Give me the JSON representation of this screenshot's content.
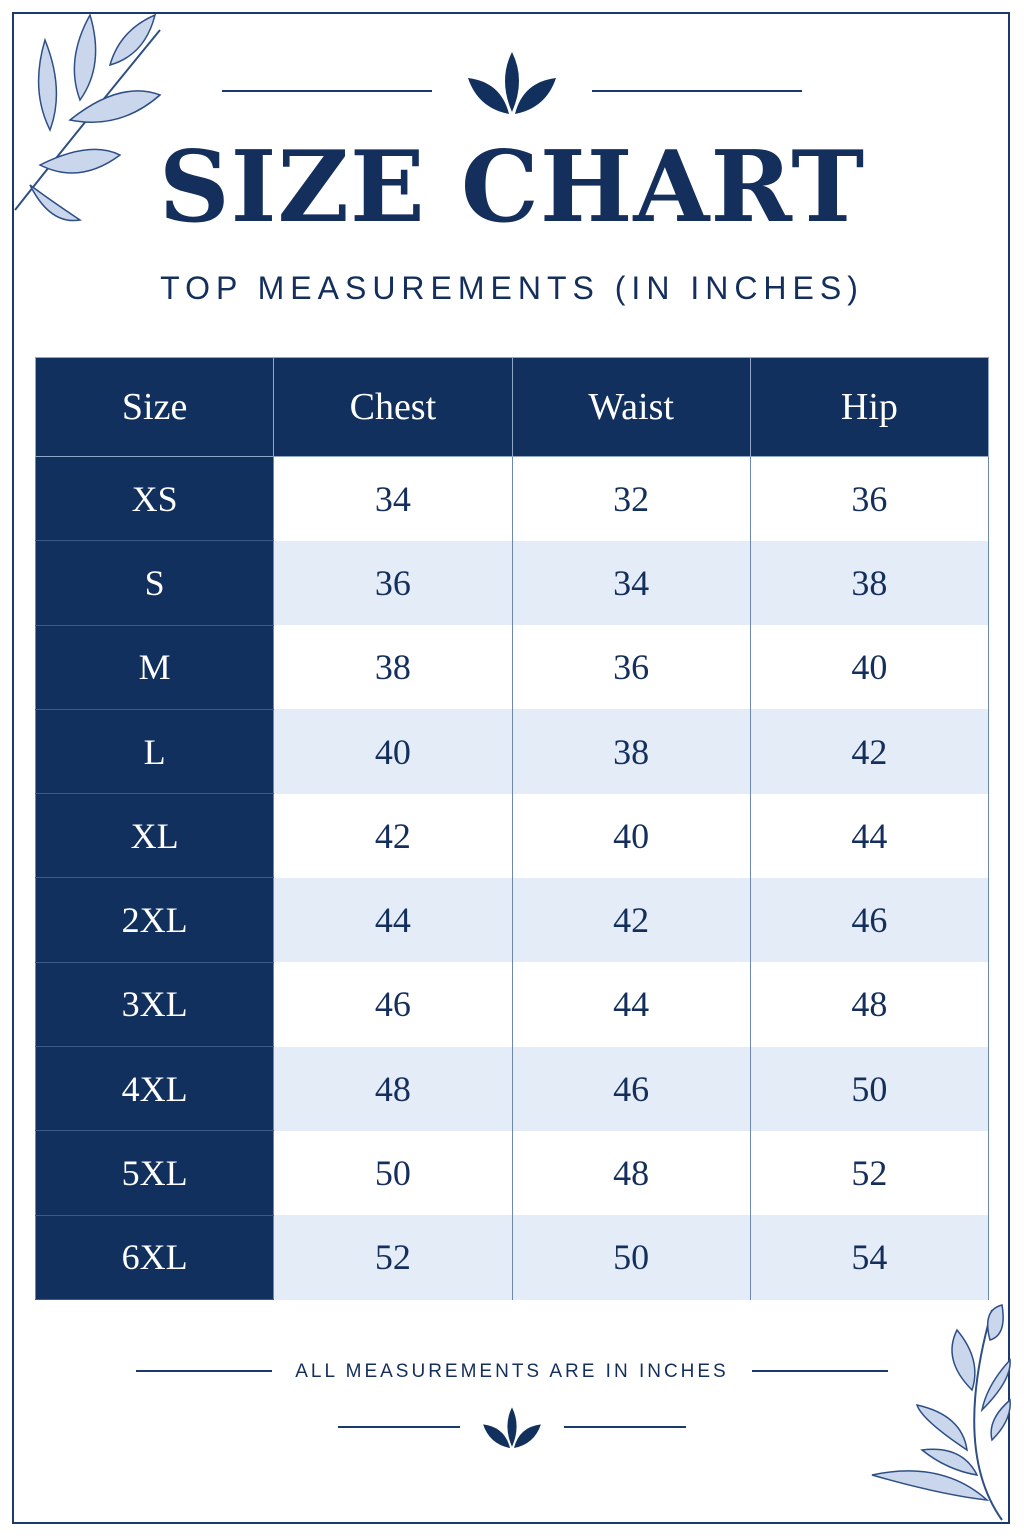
{
  "title": "SIZE CHART",
  "subtitle": "TOP MEASUREMENTS (IN INCHES)",
  "table": {
    "headers": [
      "Size",
      "Chest",
      "Waist",
      "Hip"
    ],
    "rows": [
      [
        "XS",
        "34",
        "32",
        "36"
      ],
      [
        "S",
        "36",
        "34",
        "38"
      ],
      [
        "M",
        "38",
        "36",
        "40"
      ],
      [
        "L",
        "40",
        "38",
        "42"
      ],
      [
        "XL",
        "42",
        "40",
        "44"
      ],
      [
        "2XL",
        "44",
        "42",
        "46"
      ],
      [
        "3XL",
        "46",
        "44",
        "48"
      ],
      [
        "4XL",
        "48",
        "46",
        "50"
      ],
      [
        "5XL",
        "50",
        "48",
        "52"
      ],
      [
        "6XL",
        "52",
        "50",
        "54"
      ]
    ]
  },
  "footnote": "ALL MEASUREMENTS ARE IN INCHES",
  "colors": {
    "navy": "#12305e",
    "light_row": "#e4ecf7",
    "white_row": "#ffffff",
    "leaf": "#9fb4d6"
  },
  "icons": [
    "leaf-branch-icon",
    "lotus-icon"
  ]
}
